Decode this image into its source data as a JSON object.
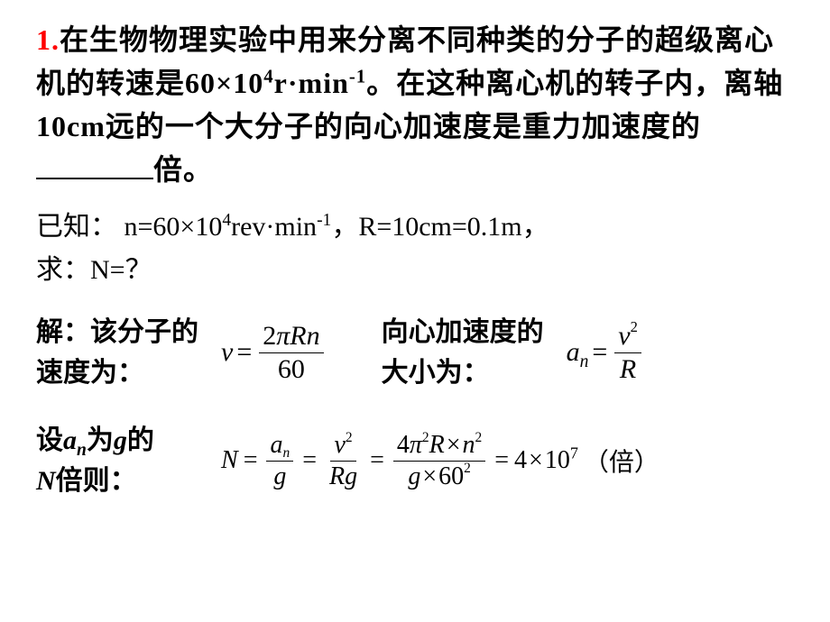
{
  "problem": {
    "number": "1.",
    "text_part1": "在生物物理实验中用来分离不同种类的分子的超级离心机的转速是",
    "speed_value": "60×10",
    "speed_exp": "4",
    "speed_unit_base": "r·min",
    "speed_unit_exp": "-1",
    "text_part2": "。在这种离心机的转子内，离轴",
    "distance": "10cm",
    "text_part3": "远的一个大分子的向心加速度是重力加速度的",
    "text_part4": "倍。"
  },
  "given": {
    "prefix": "已知：",
    "n_label": "n=60",
    "n_times": "×",
    "n_exp_base": "10",
    "n_exp": "4",
    "n_unit": "rev·min",
    "n_unit_exp": "-1",
    "comma": "，",
    "R_text": "R=10cm=0.1m",
    "end_comma": "，",
    "ask_prefix": "求：",
    "ask_text": "N=？"
  },
  "solution": {
    "label1": "解：该分子的速度为：",
    "v_formula": {
      "lhs": "v",
      "eq": "=",
      "num_left": "2",
      "num_pi": "π",
      "num_right": "Rn",
      "den": "60"
    },
    "label2": "向心加速度的大小为：",
    "a_formula": {
      "lhs_a": "a",
      "lhs_sub": "n",
      "eq": "=",
      "num_v": "v",
      "num_exp": "2",
      "den": "R"
    },
    "label3_part1": "设",
    "label3_an_a": "a",
    "label3_an_n": "n",
    "label3_part2": "为",
    "label3_g": "g",
    "label3_part3": "的",
    "label3_N": "N",
    "label3_part4": "倍则：",
    "N_chain": {
      "N": "N",
      "eq": "=",
      "f1_num_a": "a",
      "f1_num_sub": "n",
      "f1_den": "g",
      "f2_num_v": "v",
      "f2_num_exp": "2",
      "f2_den_R": "R",
      "f2_den_g": "g",
      "f3_num_4": "4",
      "f3_num_pi": "π",
      "f3_num_pi_exp": "2",
      "f3_num_R": "R",
      "f3_num_times": "×",
      "f3_num_n": "n",
      "f3_num_n_exp": "2",
      "f3_den_g": "g",
      "f3_den_times": "×",
      "f3_den_60": "60",
      "f3_den_exp": "2",
      "result_eq": "=",
      "result_4": "4",
      "result_times": "×",
      "result_10": "10",
      "result_exp": "7",
      "result_unit": "（倍）"
    }
  },
  "colors": {
    "number_color": "#ff0000",
    "text_color": "#000000",
    "background": "#ffffff"
  }
}
